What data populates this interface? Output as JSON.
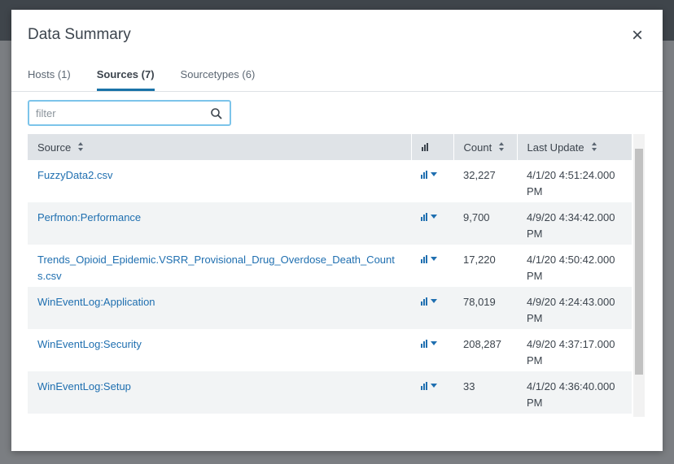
{
  "header": {
    "title": "Data Summary",
    "close": "×"
  },
  "tabs": [
    "Hosts (1)",
    "Sources (7)",
    "Sourcetypes (6)"
  ],
  "filter": {
    "placeholder": "filter"
  },
  "table": {
    "columns": [
      "Source",
      "Count",
      "Last Update"
    ],
    "rows": [
      [
        "FuzzyData2.csv",
        "32,227",
        "4/1/20 4:51:24.000 PM"
      ],
      [
        "Perfmon:Performance",
        "9,700",
        "4/9/20 4:34:42.000 PM"
      ],
      [
        "Trends_Opioid_Epidemic.VSRR_Provisional_Drug_Overdose_Death_Counts.csv",
        "17,220",
        "4/1/20 4:50:42.000 PM"
      ],
      [
        "WinEventLog:Application",
        "78,019",
        "4/9/20 4:24:43.000 PM"
      ],
      [
        "WinEventLog:Security",
        "208,287",
        "4/9/20 4:37:17.000 PM"
      ],
      [
        "WinEventLog:Setup",
        "33",
        "4/1/20 4:36:40.000 PM"
      ]
    ]
  }
}
